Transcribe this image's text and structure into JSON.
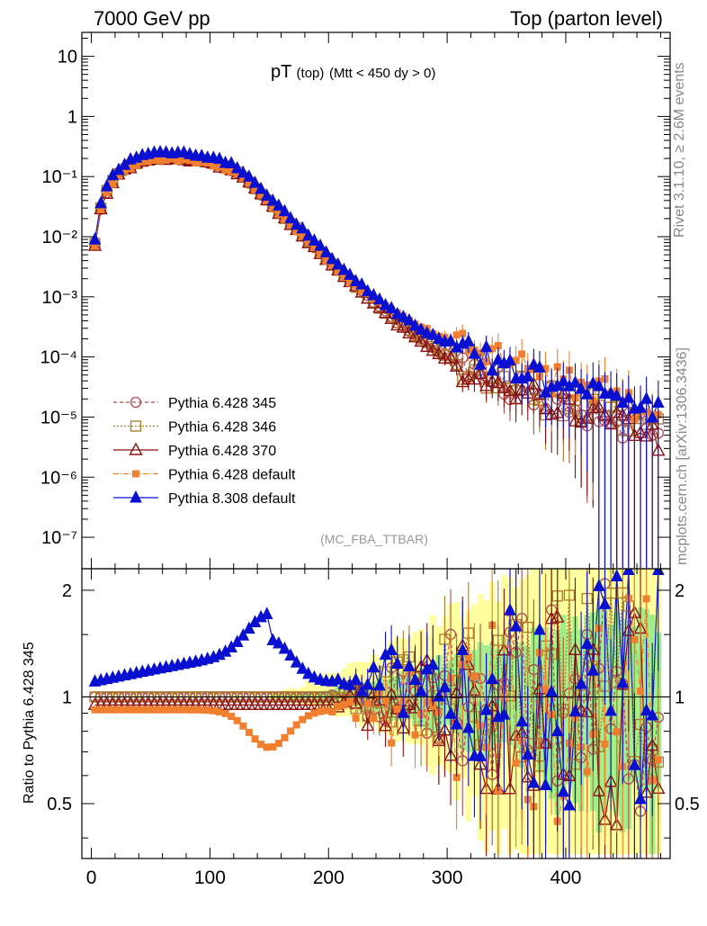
{
  "header": {
    "left": "7000 GeV pp",
    "right": "Top (parton level)"
  },
  "side": {
    "rivet": "Rivet 3.1.10, ≥ 2.6M events",
    "mcplots": "mcplots.cern.ch [arXiv:1306.3436]"
  },
  "plot": {
    "title_main": "pT",
    "title_sub": "(top)",
    "title_cut": "(Mtt < 450 dy > 0)",
    "analysis": "(MC_FBA_TTBAR)"
  },
  "chart_data": {
    "type": "line",
    "xlim": [
      -8,
      488
    ],
    "main_y_log": true,
    "main_ylim": [
      3e-08,
      25
    ],
    "main_yticks": [
      "10",
      "1",
      "10⁻¹",
      "10⁻²",
      "10⁻³",
      "10⁻⁴",
      "10⁻⁵",
      "10⁻⁶",
      "10⁻⁷"
    ],
    "ratio_ylabel": "Ratio to Pythia 6.428 345",
    "ratio_ylim": [
      0.35,
      2.3
    ],
    "ratio_yticks": [
      "0.5",
      "1",
      "2"
    ],
    "xticks": [
      "0",
      "100",
      "200",
      "300",
      "400"
    ],
    "legend_position": "bottom-left",
    "series": [
      {
        "name": "Pythia 6.428 345",
        "color": "#b04a4a",
        "marker": "circle-open",
        "dash": "4,3",
        "peak": 0.205,
        "tail_factor": 1.0,
        "ratio_level": 1.0,
        "ratio_bump": 0
      },
      {
        "name": "Pythia 6.428 346",
        "color": "#a87a2a",
        "marker": "square-open",
        "dash": "2,2",
        "peak": 0.205,
        "tail_factor": 1.0,
        "ratio_level": 1.0,
        "ratio_bump": 0
      },
      {
        "name": "Pythia 6.428 370",
        "color": "#8b1010",
        "marker": "triangle-open",
        "dash": "",
        "peak": 0.195,
        "tail_factor": 0.9,
        "ratio_level": 0.95,
        "ratio_bump": 0
      },
      {
        "name": "Pythia 6.428 default",
        "color": "#f08030",
        "marker": "square-filled",
        "dash": "6,2,1,2",
        "peak": 0.19,
        "tail_factor": 2.6,
        "ratio_level": 0.92,
        "ratio_bump": -0.2
      },
      {
        "name": "Pythia 8.308 default",
        "color": "#0a10d0",
        "marker": "triangle-filled",
        "dash": "",
        "peak": 0.25,
        "tail_factor": 1.5,
        "ratio_level": 1.1,
        "ratio_bump": 0.35
      }
    ]
  }
}
